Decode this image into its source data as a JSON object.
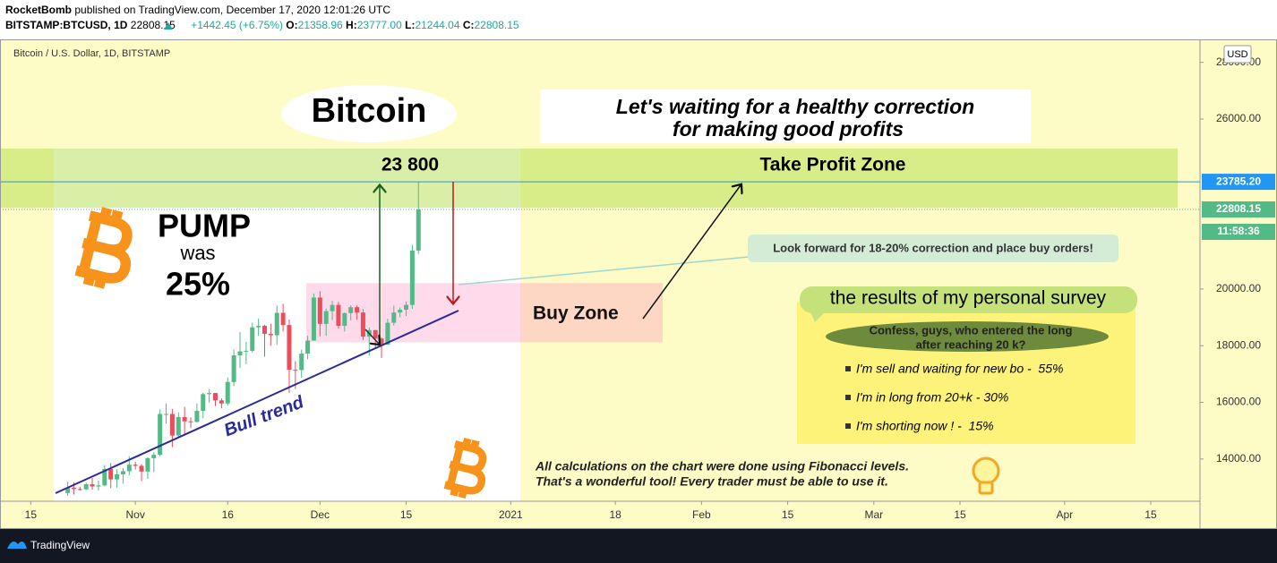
{
  "header": {
    "publisher": "RocketBomb",
    "published": "published on TradingView.com, December 17, 2020 12:01:26 UTC",
    "symbol": "BITSTAMP:BTCUSD, 1D",
    "price": "22808.15",
    "change": "+1442.45 (+6.75%)",
    "ohlc": [
      {
        "key": "O:",
        "value": "21358.96"
      },
      {
        "key": "H:",
        "value": "23777.00"
      },
      {
        "key": "L:",
        "value": "21244.04"
      },
      {
        "key": "C:",
        "value": "22808.15"
      }
    ]
  },
  "footer": {
    "brand": "TradingView"
  },
  "chart_data": {
    "type": "candlestick",
    "title": "Bitcoin / U.S. Dollar, 1D, BITSTAMP",
    "currency": "USD",
    "x": [
      "2020-10-21",
      "2020-10-22",
      "2020-10-23",
      "2020-10-24",
      "2020-10-25",
      "2020-10-26",
      "2020-10-27",
      "2020-10-28",
      "2020-10-29",
      "2020-10-30",
      "2020-10-31",
      "2020-11-01",
      "2020-11-02",
      "2020-11-03",
      "2020-11-04",
      "2020-11-05",
      "2020-11-06",
      "2020-11-07",
      "2020-11-08",
      "2020-11-09",
      "2020-11-10",
      "2020-11-11",
      "2020-11-12",
      "2020-11-13",
      "2020-11-14",
      "2020-11-15",
      "2020-11-16",
      "2020-11-17",
      "2020-11-18",
      "2020-11-19",
      "2020-11-20",
      "2020-11-21",
      "2020-11-22",
      "2020-11-23",
      "2020-11-24",
      "2020-11-25",
      "2020-11-26",
      "2020-11-27",
      "2020-11-28",
      "2020-11-29",
      "2020-11-30",
      "2020-12-01",
      "2020-12-02",
      "2020-12-03",
      "2020-12-04",
      "2020-12-05",
      "2020-12-06",
      "2020-12-07",
      "2020-12-08",
      "2020-12-09",
      "2020-12-10",
      "2020-12-11",
      "2020-12-12",
      "2020-12-13",
      "2020-12-14",
      "2020-12-15",
      "2020-12-16",
      "2020-12-17"
    ],
    "open": [
      12800,
      12990,
      12940,
      12930,
      13110,
      13030,
      13070,
      13650,
      13280,
      13460,
      13570,
      13800,
      13760,
      13560,
      14030,
      14150,
      15590,
      15590,
      14830,
      15480,
      15330,
      15310,
      15700,
      16290,
      16330,
      16070,
      15960,
      16720,
      17660,
      17800,
      17820,
      18650,
      18700,
      18420,
      18370,
      19160,
      18730,
      17150,
      17140,
      17720,
      18180,
      19700,
      18770,
      19220,
      19440,
      18700,
      19150,
      19360,
      19170,
      18320,
      18550,
      18250,
      18040,
      18810,
      19170,
      19270,
      19440,
      21358.96
    ],
    "high": [
      13200,
      13180,
      13020,
      13160,
      13330,
      13240,
      13790,
      13860,
      13640,
      13680,
      14100,
      13900,
      13820,
      14070,
      14240,
      15750,
      15960,
      15770,
      15650,
      15840,
      15470,
      15960,
      16340,
      16480,
      16330,
      16140,
      16880,
      17860,
      18480,
      18130,
      18810,
      18950,
      18740,
      18770,
      19420,
      19480,
      18920,
      17460,
      17860,
      18350,
      19850,
      19920,
      19310,
      19590,
      19540,
      19170,
      19420,
      19420,
      19290,
      18640,
      18560,
      18290,
      18950,
      19410,
      19350,
      19560,
      21560,
      23777
    ],
    "low": [
      12700,
      12750,
      12880,
      12900,
      12920,
      12890,
      13030,
      12970,
      12990,
      13130,
      13430,
      13630,
      13220,
      13300,
      13540,
      14090,
      15250,
      14420,
      14740,
      14820,
      15100,
      15290,
      15440,
      15990,
      15870,
      15790,
      15880,
      16570,
      17220,
      17350,
      17760,
      18350,
      17610,
      18000,
      18030,
      18500,
      16330,
      16470,
      16870,
      17520,
      18180,
      18330,
      18350,
      18910,
      18600,
      18500,
      18900,
      18920,
      18200,
      17650,
      17910,
      17570,
      18020,
      18710,
      19000,
      19050,
      19300,
      21244.04
    ],
    "close": [
      12990,
      12940,
      12930,
      13110,
      13030,
      13070,
      13650,
      13280,
      13460,
      13570,
      13800,
      13760,
      13560,
      14030,
      14150,
      15590,
      15590,
      14830,
      15480,
      15330,
      15310,
      15700,
      16290,
      16330,
      16070,
      15960,
      16720,
      17660,
      17800,
      17820,
      18650,
      18700,
      18420,
      18370,
      19160,
      18730,
      17150,
      17140,
      17720,
      18180,
      19700,
      18770,
      19220,
      19440,
      18700,
      19150,
      19360,
      19170,
      18320,
      18550,
      18250,
      18040,
      18810,
      19170,
      19270,
      19440,
      21360,
      22808.15
    ],
    "up_color": "#53b987",
    "down_color": "#eb4d5c",
    "xlim": [
      "2020-10-10",
      "2021-04-23"
    ],
    "xticks": [
      {
        "value": "2020-10-15",
        "label": "15"
      },
      {
        "value": "2020-11-01",
        "label": "Nov"
      },
      {
        "value": "2020-11-16",
        "label": "16"
      },
      {
        "value": "2020-12-01",
        "label": "Dec"
      },
      {
        "value": "2020-12-15",
        "label": "15"
      },
      {
        "value": "2021-01-01",
        "label": "2021"
      },
      {
        "value": "2021-01-18",
        "label": "18"
      },
      {
        "value": "2021-02-01",
        "label": "Feb"
      },
      {
        "value": "2021-02-15",
        "label": "15"
      },
      {
        "value": "2021-03-01",
        "label": "Mar"
      },
      {
        "value": "2021-03-15",
        "label": "15"
      },
      {
        "value": "2021-04-01",
        "label": "Apr"
      },
      {
        "value": "2021-04-15",
        "label": "15"
      }
    ],
    "ylim": [
      12510,
      28780
    ],
    "yticks": [
      {
        "value": 14000,
        "label": "14000.00"
      },
      {
        "value": 16000,
        "label": "16000.00"
      },
      {
        "value": 18000,
        "label": "18000.00"
      },
      {
        "value": 20000,
        "label": "20000.00"
      },
      {
        "value": 26000,
        "label": "26000.00"
      },
      {
        "value": 28000,
        "label": "28000.00"
      }
    ],
    "hline": {
      "value": 23785.2,
      "label": "23785.20",
      "color": "#2196f3"
    },
    "last_price": 22808.15,
    "countdown": "11:58:36",
    "zones": [
      {
        "label": "Take Profit Zone",
        "range": [
          22870,
          24960
        ],
        "color": "rgba(170,220,60,0.45)"
      },
      {
        "label": "Buy Zone",
        "range": [
          18120,
          20210
        ],
        "color": "rgba(255,140,190,0.32)"
      }
    ],
    "annotations": {
      "coin": "Bitcoin",
      "waiting": [
        "Let's waiting for a healthy correction",
        "for making good profits"
      ],
      "target": "23 800",
      "pump": "PUMP",
      "was": "was",
      "pump_pct": "25%",
      "callout": "Look forward for 18-20% correction and place buy orders!",
      "trend": "Bull trend",
      "survey": {
        "title": "the results of my personal survey",
        "question": [
          "Confess, guys, who entered the long",
          "after reaching 20 k?"
        ],
        "items": [
          "I'm sell and waiting for new bo -  55%",
          "I'm in long from 20+k - 30%",
          "I'm shorting now ! -  15%"
        ]
      },
      "note": [
        "All calculations on the chart were done using Fibonacci levels.",
        "That's a wonderful tool! Every trader must be able to use it."
      ]
    }
  }
}
